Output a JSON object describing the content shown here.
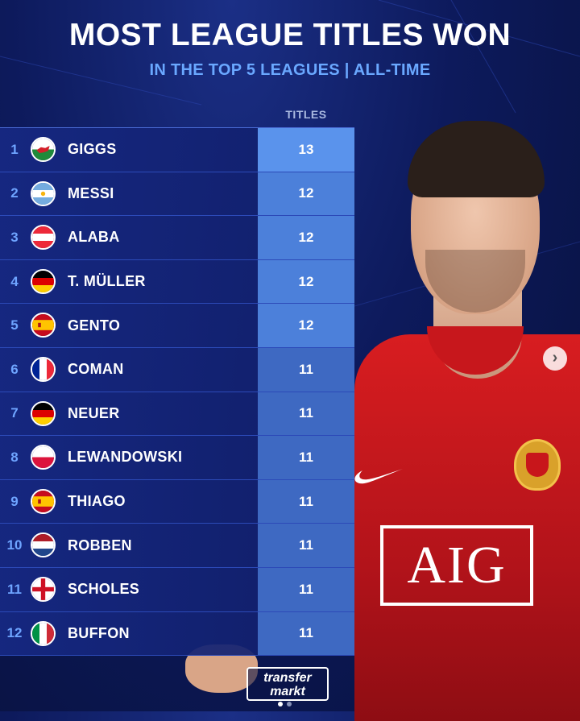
{
  "header": {
    "title": "MOST LEAGUE TITLES WON",
    "subtitle": "IN THE TOP 5 LEAGUES | ALL-TIME",
    "column_label": "TITLES"
  },
  "chart_data": {
    "type": "table",
    "title": "MOST LEAGUE TITLES WON",
    "subtitle": "IN THE TOP 5 LEAGUES | ALL-TIME",
    "columns": [
      "",
      "",
      "TITLES"
    ],
    "rows": [
      {
        "rank": "1",
        "name": "GIGGS",
        "flag": "wales",
        "titles": "13"
      },
      {
        "rank": "2",
        "name": "MESSI",
        "flag": "argentina",
        "titles": "12"
      },
      {
        "rank": "3",
        "name": "ALABA",
        "flag": "austria",
        "titles": "12"
      },
      {
        "rank": "4",
        "name": "T. MÜLLER",
        "flag": "germany",
        "titles": "12"
      },
      {
        "rank": "5",
        "name": "GENTO",
        "flag": "spain",
        "titles": "12"
      },
      {
        "rank": "6",
        "name": "COMAN",
        "flag": "france",
        "titles": "11"
      },
      {
        "rank": "7",
        "name": "NEUER",
        "flag": "germany",
        "titles": "11"
      },
      {
        "rank": "8",
        "name": "LEWANDOWSKI",
        "flag": "poland",
        "titles": "11"
      },
      {
        "rank": "9",
        "name": "THIAGO",
        "flag": "spain",
        "titles": "11"
      },
      {
        "rank": "10",
        "name": "ROBBEN",
        "flag": "netherlands",
        "titles": "11"
      },
      {
        "rank": "11",
        "name": "SCHOLES",
        "flag": "england",
        "titles": "11"
      },
      {
        "rank": "12",
        "name": "BUFFON",
        "flag": "italy",
        "titles": "11"
      }
    ]
  },
  "photo": {
    "sponsor_text": "AIG"
  },
  "branding": {
    "logo_line1": "transfer",
    "logo_line2": "markt"
  },
  "carousel": {
    "next_icon": "chevron-right-icon",
    "dots": 2,
    "active_dot": 0
  },
  "colors": {
    "value_max": "#5a93ec",
    "value_mid": "#4c80da",
    "value_min": "#3e69c2",
    "rank": "#6ea4ff",
    "subtitle": "#6aa8ff"
  }
}
